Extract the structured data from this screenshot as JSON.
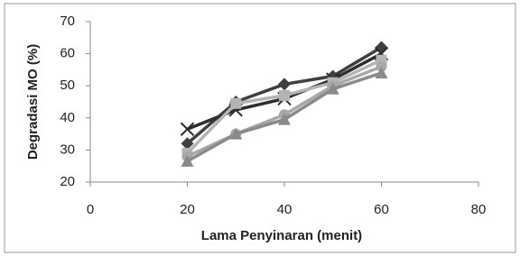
{
  "chart_data": {
    "type": "line",
    "x_label": "Lama Penyinaran (menit)",
    "y_label": "Degradasi MO (%)",
    "x": [
      20,
      30,
      40,
      50,
      60
    ],
    "series": [
      {
        "color": "#3f3f3f",
        "marker": "diamond",
        "values": [
          32,
          45,
          50.5,
          53,
          62
        ]
      },
      {
        "color": "#2e2e2e",
        "marker": "x",
        "values": [
          36.5,
          42.5,
          46,
          52,
          60
        ]
      },
      {
        "color": "#b4b4b4",
        "marker": "square",
        "values": [
          29,
          44.5,
          47,
          51,
          58
        ]
      },
      {
        "color": "#a8a8a8",
        "marker": "circle",
        "values": [
          28,
          35,
          41,
          50,
          56
        ]
      },
      {
        "color": "#8a8a8a",
        "marker": "triangle",
        "values": [
          26.5,
          35,
          39.5,
          49,
          54
        ]
      }
    ],
    "xlim": [
      0,
      80
    ],
    "xticks": [
      0,
      20,
      40,
      60,
      80
    ],
    "ylim": [
      20,
      70
    ],
    "yticks": [
      20,
      30,
      40,
      50,
      60,
      70
    ]
  }
}
